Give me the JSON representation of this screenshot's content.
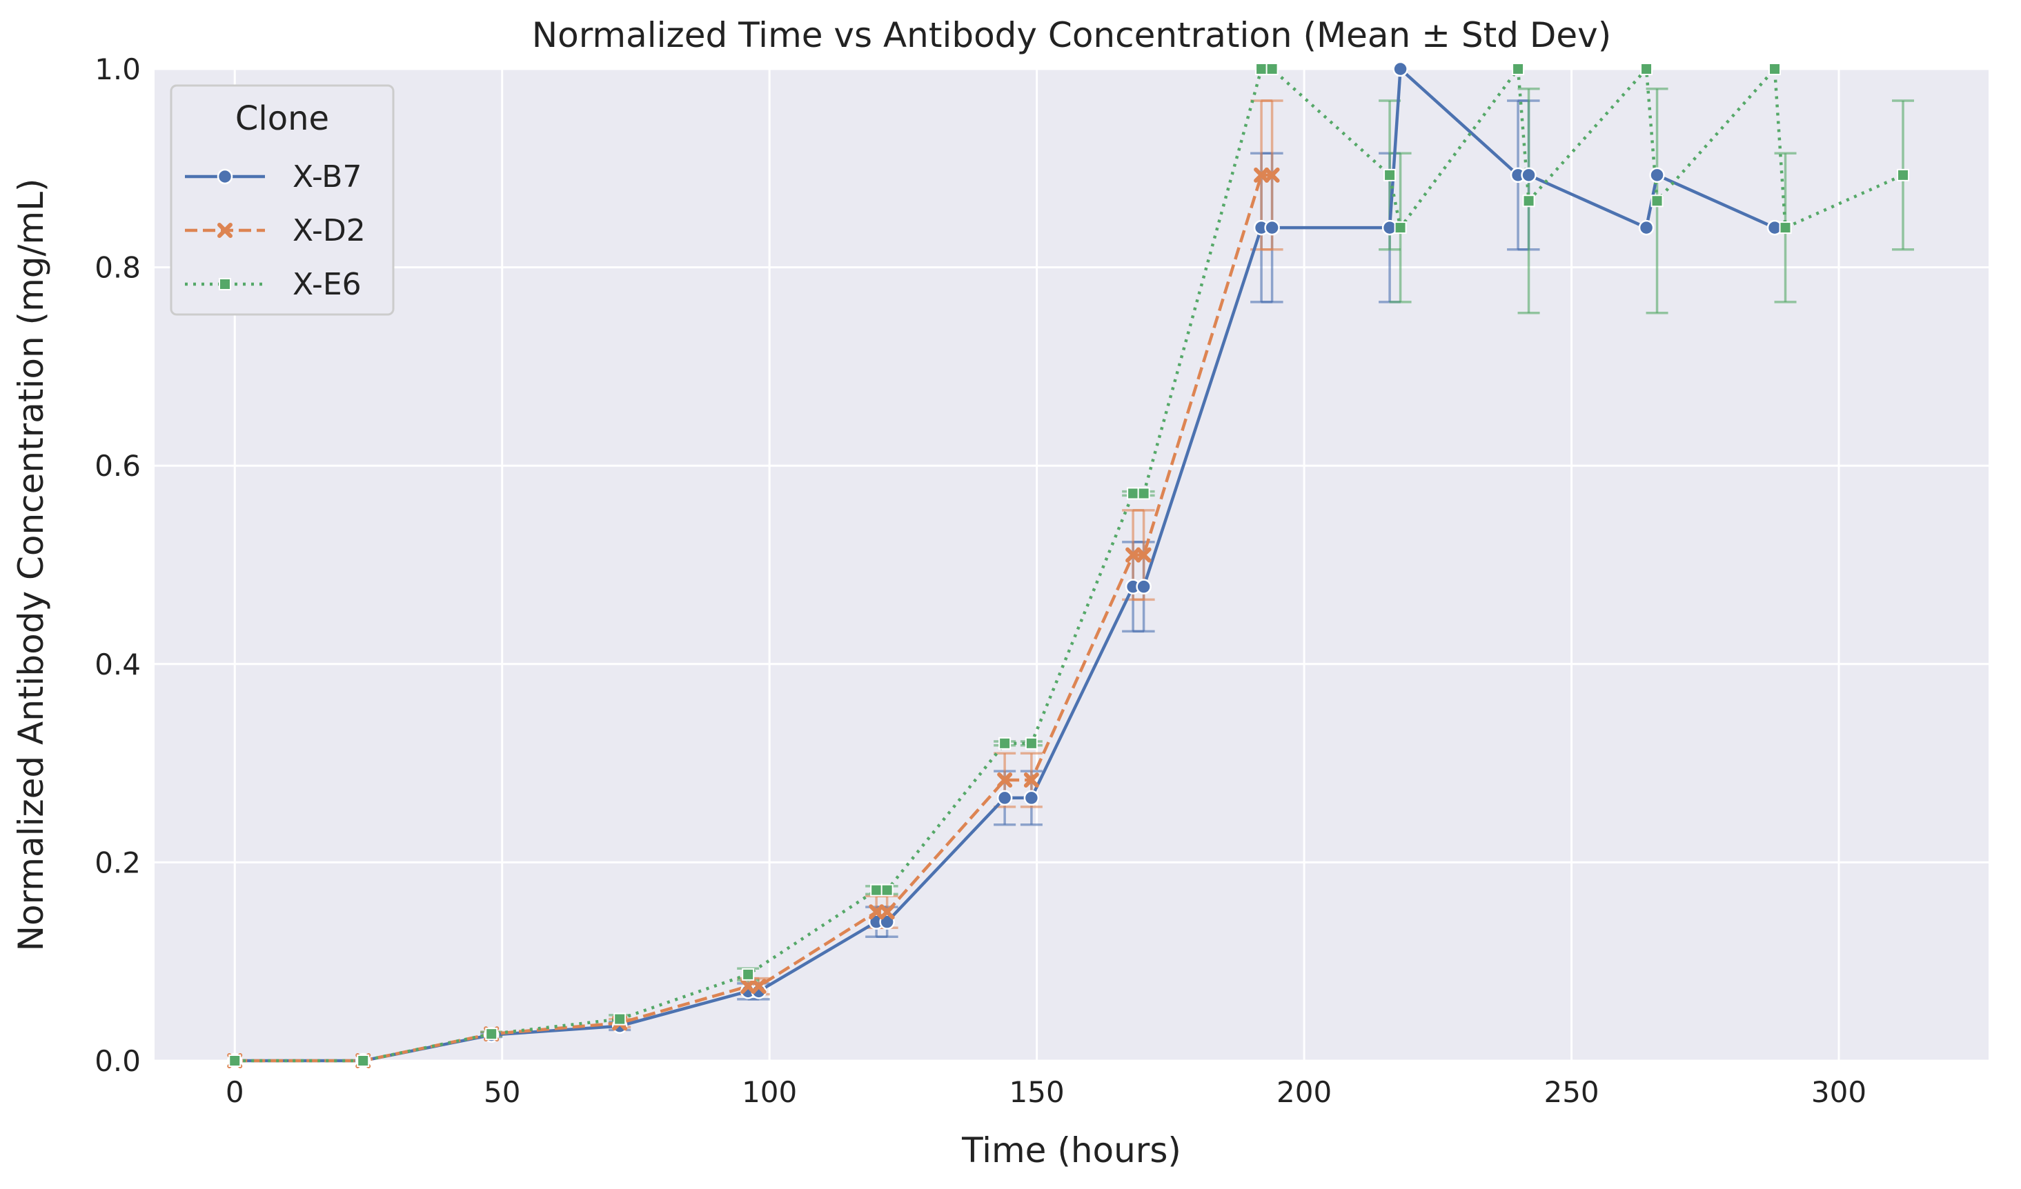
{
  "chart_data": {
    "type": "line",
    "title": "Normalized Time vs Antibody Concentration (Mean ± Std Dev)",
    "xlabel": "Time (hours)",
    "ylabel": "Normalized Antibody Concentration (mg/mL)",
    "xlim": [
      -15,
      328
    ],
    "ylim": [
      0.0,
      1.0
    ],
    "xticks": [
      0,
      50,
      100,
      150,
      200,
      250,
      300
    ],
    "yticks": [
      0.0,
      0.2,
      0.4,
      0.6,
      0.8,
      1.0
    ],
    "xtick_labels": [
      "0",
      "50",
      "100",
      "150",
      "200",
      "250",
      "300"
    ],
    "ytick_labels": [
      "0.0",
      "0.2",
      "0.4",
      "0.6",
      "0.8",
      "1.0"
    ],
    "grid": true,
    "legend": {
      "title": "Clone",
      "placement": "upper-left"
    },
    "series": [
      {
        "name": "X-B7",
        "color": "#4c72b0",
        "line_style": "solid",
        "marker": "circle",
        "points": [
          {
            "x": 0,
            "y": 0.0,
            "err": 0.0
          },
          {
            "x": 24,
            "y": 0.0,
            "err": 0.0
          },
          {
            "x": 48,
            "y": 0.026,
            "err": 0.002
          },
          {
            "x": 72,
            "y": 0.035,
            "err": 0.004
          },
          {
            "x": 96,
            "y": 0.07,
            "err": 0.008
          },
          {
            "x": 98,
            "y": 0.07,
            "err": 0.008
          },
          {
            "x": 120,
            "y": 0.14,
            "err": 0.015
          },
          {
            "x": 122,
            "y": 0.14,
            "err": 0.015
          },
          {
            "x": 144,
            "y": 0.265,
            "err": 0.027
          },
          {
            "x": 149,
            "y": 0.265,
            "err": 0.027
          },
          {
            "x": 168,
            "y": 0.478,
            "err": 0.045
          },
          {
            "x": 170,
            "y": 0.478,
            "err": 0.045
          },
          {
            "x": 192,
            "y": 0.84,
            "err": 0.075
          },
          {
            "x": 194,
            "y": 0.84,
            "err": 0.075
          },
          {
            "x": 216,
            "y": 0.84,
            "err": 0.075
          },
          {
            "x": 218,
            "y": 1.0,
            "err": 0.0
          },
          {
            "x": 240,
            "y": 0.893,
            "err": 0.075
          },
          {
            "x": 242,
            "y": 0.893,
            "err": 0.075
          },
          {
            "x": 264,
            "y": 0.84,
            "err": 0.0
          },
          {
            "x": 266,
            "y": 0.893,
            "err": 0.0
          },
          {
            "x": 288,
            "y": 0.84,
            "err": 0.0
          }
        ]
      },
      {
        "name": "X-D2",
        "color": "#dd8452",
        "line_style": "dashed",
        "marker": "x",
        "points": [
          {
            "x": 0,
            "y": 0.0,
            "err": 0.0
          },
          {
            "x": 24,
            "y": 0.0,
            "err": 0.0
          },
          {
            "x": 48,
            "y": 0.027,
            "err": 0.002
          },
          {
            "x": 72,
            "y": 0.038,
            "err": 0.004
          },
          {
            "x": 96,
            "y": 0.075,
            "err": 0.008
          },
          {
            "x": 98,
            "y": 0.075,
            "err": 0.008
          },
          {
            "x": 120,
            "y": 0.15,
            "err": 0.016
          },
          {
            "x": 122,
            "y": 0.15,
            "err": 0.016
          },
          {
            "x": 144,
            "y": 0.283,
            "err": 0.027
          },
          {
            "x": 149,
            "y": 0.283,
            "err": 0.027
          },
          {
            "x": 168,
            "y": 0.51,
            "err": 0.045
          },
          {
            "x": 170,
            "y": 0.51,
            "err": 0.045
          },
          {
            "x": 192,
            "y": 0.893,
            "err": 0.075
          },
          {
            "x": 194,
            "y": 0.893,
            "err": 0.075
          }
        ]
      },
      {
        "name": "X-E6",
        "color": "#55a868",
        "line_style": "dotted",
        "marker": "square",
        "points": [
          {
            "x": 0,
            "y": 0.0,
            "err": 0.0
          },
          {
            "x": 24,
            "y": 0.0,
            "err": 0.0
          },
          {
            "x": 48,
            "y": 0.027,
            "err": 0.002
          },
          {
            "x": 72,
            "y": 0.042,
            "err": 0.004
          },
          {
            "x": 96,
            "y": 0.087,
            "err": 0.006
          },
          {
            "x": 120,
            "y": 0.172,
            "err": 0.004
          },
          {
            "x": 122,
            "y": 0.172,
            "err": 0.004
          },
          {
            "x": 144,
            "y": 0.32,
            "err": 0.002
          },
          {
            "x": 149,
            "y": 0.32,
            "err": 0.002
          },
          {
            "x": 168,
            "y": 0.572,
            "err": 0.002
          },
          {
            "x": 170,
            "y": 0.572,
            "err": 0.002
          },
          {
            "x": 192,
            "y": 1.0,
            "err": 0.0
          },
          {
            "x": 194,
            "y": 1.0,
            "err": 0.0
          },
          {
            "x": 216,
            "y": 0.893,
            "err": 0.075
          },
          {
            "x": 218,
            "y": 0.84,
            "err": 0.075
          },
          {
            "x": 240,
            "y": 1.0,
            "err": 0.0
          },
          {
            "x": 242,
            "y": 0.867,
            "err": 0.113
          },
          {
            "x": 264,
            "y": 1.0,
            "err": 0.0
          },
          {
            "x": 266,
            "y": 0.867,
            "err": 0.113
          },
          {
            "x": 288,
            "y": 1.0,
            "err": 0.0
          },
          {
            "x": 290,
            "y": 0.84,
            "err": 0.075
          },
          {
            "x": 312,
            "y": 0.893,
            "err": 0.075
          }
        ]
      }
    ]
  }
}
